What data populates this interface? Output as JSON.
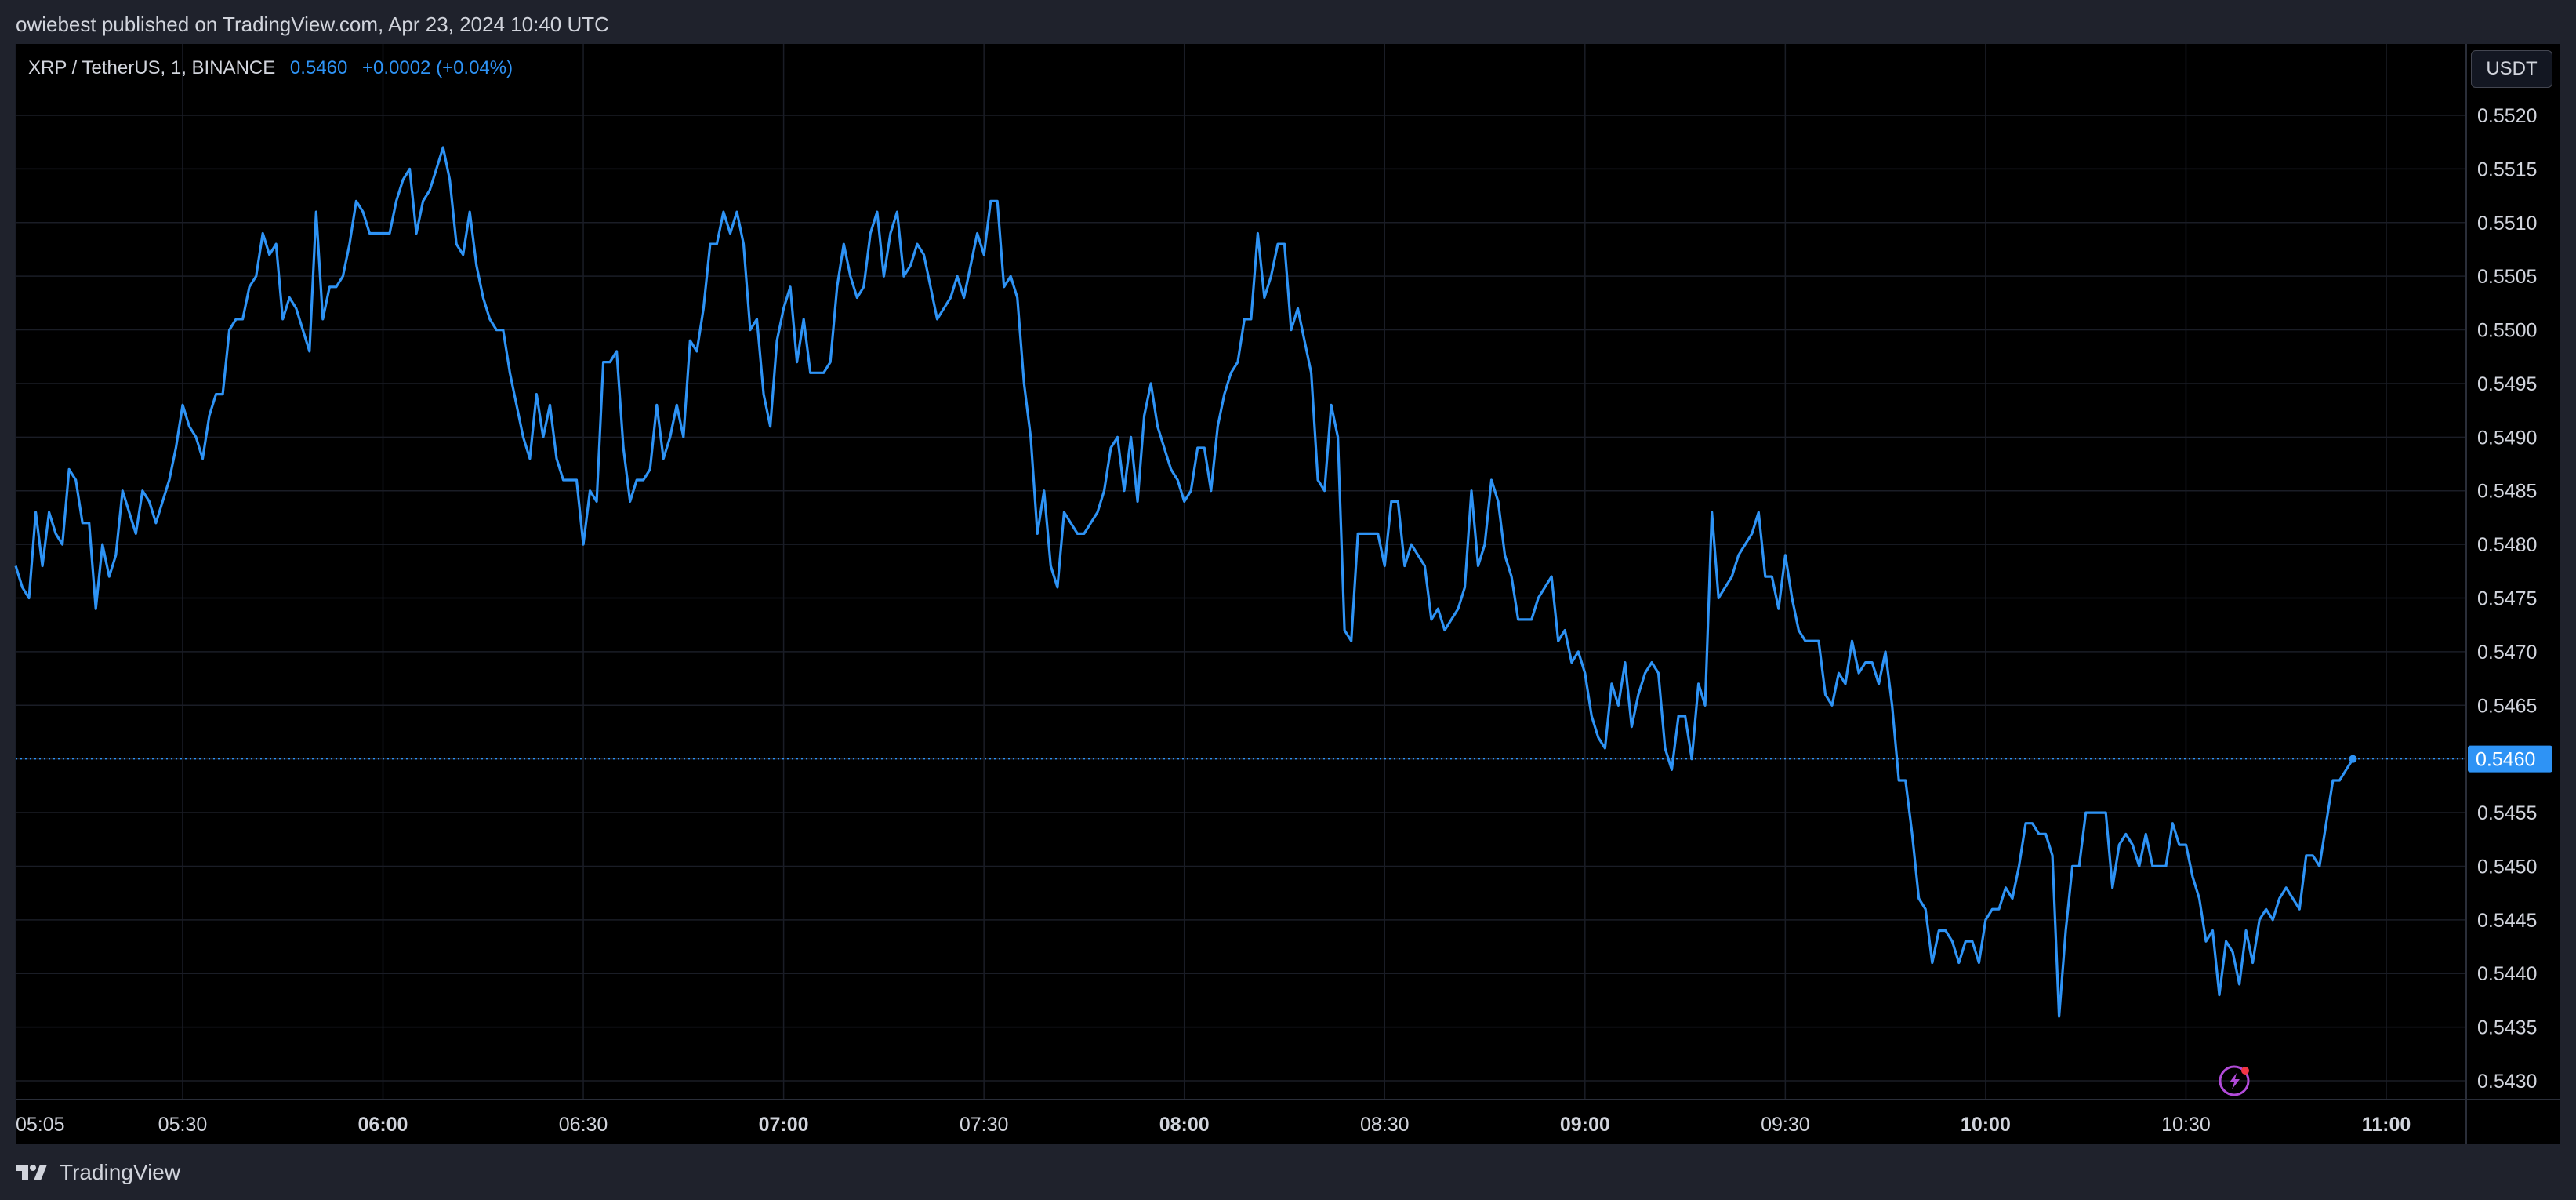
{
  "header": {
    "publisher_line": "owiebest published on TradingView.com, Apr 23, 2024 10:40 UTC"
  },
  "legend": {
    "symbol": "XRP / TetherUS, 1, BINANCE",
    "last_value": "0.5460",
    "change": "+0.0002 (+0.04%)"
  },
  "price_axis": {
    "currency_button": "USDT",
    "current_price_label": "0.5460"
  },
  "footer": {
    "brand": "TradingView"
  },
  "colors": {
    "line": "#2e93f5",
    "background": "#000000",
    "panel": "#1f222c",
    "text": "#d1d4dc",
    "price_tag": "#2e93f5",
    "grid": "#1a1d26"
  },
  "chart_data": {
    "type": "line",
    "title": "XRP / TetherUS, 1, BINANCE",
    "xlabel": "",
    "ylabel": "",
    "y_ticks": [
      0.552,
      0.5515,
      0.551,
      0.5505,
      0.55,
      0.5495,
      0.549,
      0.5485,
      0.548,
      0.5475,
      0.547,
      0.5465,
      0.546,
      0.5455,
      0.545,
      0.5445,
      0.544,
      0.5435,
      0.543
    ],
    "y_tick_labels": [
      "0.5520",
      "0.5515",
      "0.5510",
      "0.5505",
      "0.5500",
      "0.5495",
      "0.5490",
      "0.5485",
      "0.5480",
      "0.5475",
      "0.5470",
      "0.5465",
      "0.5460",
      "0.5455",
      "0.5450",
      "0.5445",
      "0.5440",
      "0.5435",
      "0.5430"
    ],
    "x_tick_labels": [
      {
        "label": "05:05",
        "minute": 0,
        "major": false
      },
      {
        "label": "05:30",
        "minute": 25,
        "major": false
      },
      {
        "label": "06:00",
        "minute": 55,
        "major": true
      },
      {
        "label": "06:30",
        "minute": 85,
        "major": false
      },
      {
        "label": "07:00",
        "minute": 115,
        "major": true
      },
      {
        "label": "07:30",
        "minute": 145,
        "major": false
      },
      {
        "label": "08:00",
        "minute": 175,
        "major": true
      },
      {
        "label": "08:30",
        "minute": 205,
        "major": false
      },
      {
        "label": "09:00",
        "minute": 235,
        "major": true
      },
      {
        "label": "09:30",
        "minute": 265,
        "major": false
      },
      {
        "label": "10:00",
        "minute": 295,
        "major": true
      },
      {
        "label": "10:30",
        "minute": 325,
        "major": false
      },
      {
        "label": "11:00",
        "minute": 355,
        "major": true
      }
    ],
    "x_start_time": "05:05",
    "x_end_time": "11:13",
    "ylim": [
      0.54278,
      0.55266
    ],
    "grid": true,
    "current_price": 0.546,
    "series": [
      {
        "x_start_time": "05:05",
        "interval_minutes": 1,
        "values": [
          0.5478,
          0.5476,
          0.5475,
          0.5483,
          0.5478,
          0.5483,
          0.5481,
          0.548,
          0.5487,
          0.5486,
          0.5482,
          0.5482,
          0.5474,
          0.548,
          0.5477,
          0.5479,
          0.5485,
          0.5483,
          0.5481,
          0.5485,
          0.5484,
          0.5482,
          0.5484,
          0.5486,
          0.5489,
          0.5493,
          0.5491,
          0.549,
          0.5488,
          0.5492,
          0.5494,
          0.5494,
          0.55,
          0.5501,
          0.5501,
          0.5504,
          0.5505,
          0.5509,
          0.5507,
          0.5508,
          0.5501,
          0.5503,
          0.5502,
          0.55,
          0.5498,
          0.5511,
          0.5501,
          0.5504,
          0.5504,
          0.5505,
          0.5508,
          0.5512,
          0.5511,
          0.5509,
          0.5509,
          0.5509,
          0.5509,
          0.5512,
          0.5514,
          0.5515,
          0.5509,
          0.5512,
          0.5513,
          0.5515,
          0.5517,
          0.5514,
          0.5508,
          0.5507,
          0.5511,
          0.5506,
          0.5503,
          0.5501,
          0.55,
          0.55,
          0.5496,
          0.5493,
          0.549,
          0.5488,
          0.5494,
          0.549,
          0.5493,
          0.5488,
          0.5486,
          0.5486,
          0.5486,
          0.548,
          0.5485,
          0.5484,
          0.5497,
          0.5497,
          0.5498,
          0.5489,
          0.5484,
          0.5486,
          0.5486,
          0.5487,
          0.5493,
          0.5488,
          0.549,
          0.5493,
          0.549,
          0.5499,
          0.5498,
          0.5502,
          0.5508,
          0.5508,
          0.5511,
          0.5509,
          0.5511,
          0.5508,
          0.55,
          0.5501,
          0.5494,
          0.5491,
          0.5499,
          0.5502,
          0.5504,
          0.5497,
          0.5501,
          0.5496,
          0.5496,
          0.5496,
          0.5497,
          0.5504,
          0.5508,
          0.5505,
          0.5503,
          0.5504,
          0.5509,
          0.5511,
          0.5505,
          0.5509,
          0.5511,
          0.5505,
          0.5506,
          0.5508,
          0.5507,
          0.5504,
          0.5501,
          0.5502,
          0.5503,
          0.5505,
          0.5503,
          0.5506,
          0.5509,
          0.5507,
          0.5512,
          0.5512,
          0.5504,
          0.5505,
          0.5503,
          0.5495,
          0.549,
          0.5481,
          0.5485,
          0.5478,
          0.5476,
          0.5483,
          0.5482,
          0.5481,
          0.5481,
          0.5482,
          0.5483,
          0.5485,
          0.5489,
          0.549,
          0.5485,
          0.549,
          0.5484,
          0.5492,
          0.5495,
          0.5491,
          0.5489,
          0.5487,
          0.5486,
          0.5484,
          0.5485,
          0.5489,
          0.5489,
          0.5485,
          0.5491,
          0.5494,
          0.5496,
          0.5497,
          0.5501,
          0.5501,
          0.5509,
          0.5503,
          0.5505,
          0.5508,
          0.5508,
          0.55,
          0.5502,
          0.5499,
          0.5496,
          0.5486,
          0.5485,
          0.5493,
          0.549,
          0.5472,
          0.5471,
          0.5481,
          0.5481,
          0.5481,
          0.5481,
          0.5478,
          0.5484,
          0.5484,
          0.5478,
          0.548,
          0.5479,
          0.5478,
          0.5473,
          0.5474,
          0.5472,
          0.5473,
          0.5474,
          0.5476,
          0.5485,
          0.5478,
          0.548,
          0.5486,
          0.5484,
          0.5479,
          0.5477,
          0.5473,
          0.5473,
          0.5473,
          0.5475,
          0.5476,
          0.5477,
          0.5471,
          0.5472,
          0.5469,
          0.547,
          0.5468,
          0.5464,
          0.5462,
          0.5461,
          0.5467,
          0.5465,
          0.5469,
          0.5463,
          0.5466,
          0.5468,
          0.5469,
          0.5468,
          0.5461,
          0.5459,
          0.5464,
          0.5464,
          0.546,
          0.5467,
          0.5465,
          0.5483,
          0.5475,
          0.5476,
          0.5477,
          0.5479,
          0.548,
          0.5481,
          0.5483,
          0.5477,
          0.5477,
          0.5474,
          0.5479,
          0.5475,
          0.5472,
          0.5471,
          0.5471,
          0.5471,
          0.5466,
          0.5465,
          0.5468,
          0.5467,
          0.5471,
          0.5468,
          0.5469,
          0.5469,
          0.5467,
          0.547,
          0.5465,
          0.5458,
          0.5458,
          0.5453,
          0.5447,
          0.5446,
          0.5441,
          0.5444,
          0.5444,
          0.5443,
          0.5441,
          0.5443,
          0.5443,
          0.5441,
          0.5445,
          0.5446,
          0.5446,
          0.5448,
          0.5447,
          0.545,
          0.5454,
          0.5454,
          0.5453,
          0.5453,
          0.5451,
          0.5436,
          0.5444,
          0.545,
          0.545,
          0.5455,
          0.5455,
          0.5455,
          0.5455,
          0.5448,
          0.5452,
          0.5453,
          0.5452,
          0.545,
          0.5453,
          0.545,
          0.545,
          0.545,
          0.5454,
          0.5452,
          0.5452,
          0.5449,
          0.5447,
          0.5443,
          0.5444,
          0.5438,
          0.5443,
          0.5442,
          0.5439,
          0.5444,
          0.5441,
          0.5445,
          0.5446,
          0.5445,
          0.5447,
          0.5448,
          0.5447,
          0.5446,
          0.5451,
          0.5451,
          0.545,
          0.5454,
          0.5458,
          0.5458,
          0.5459,
          0.546
        ]
      }
    ]
  }
}
